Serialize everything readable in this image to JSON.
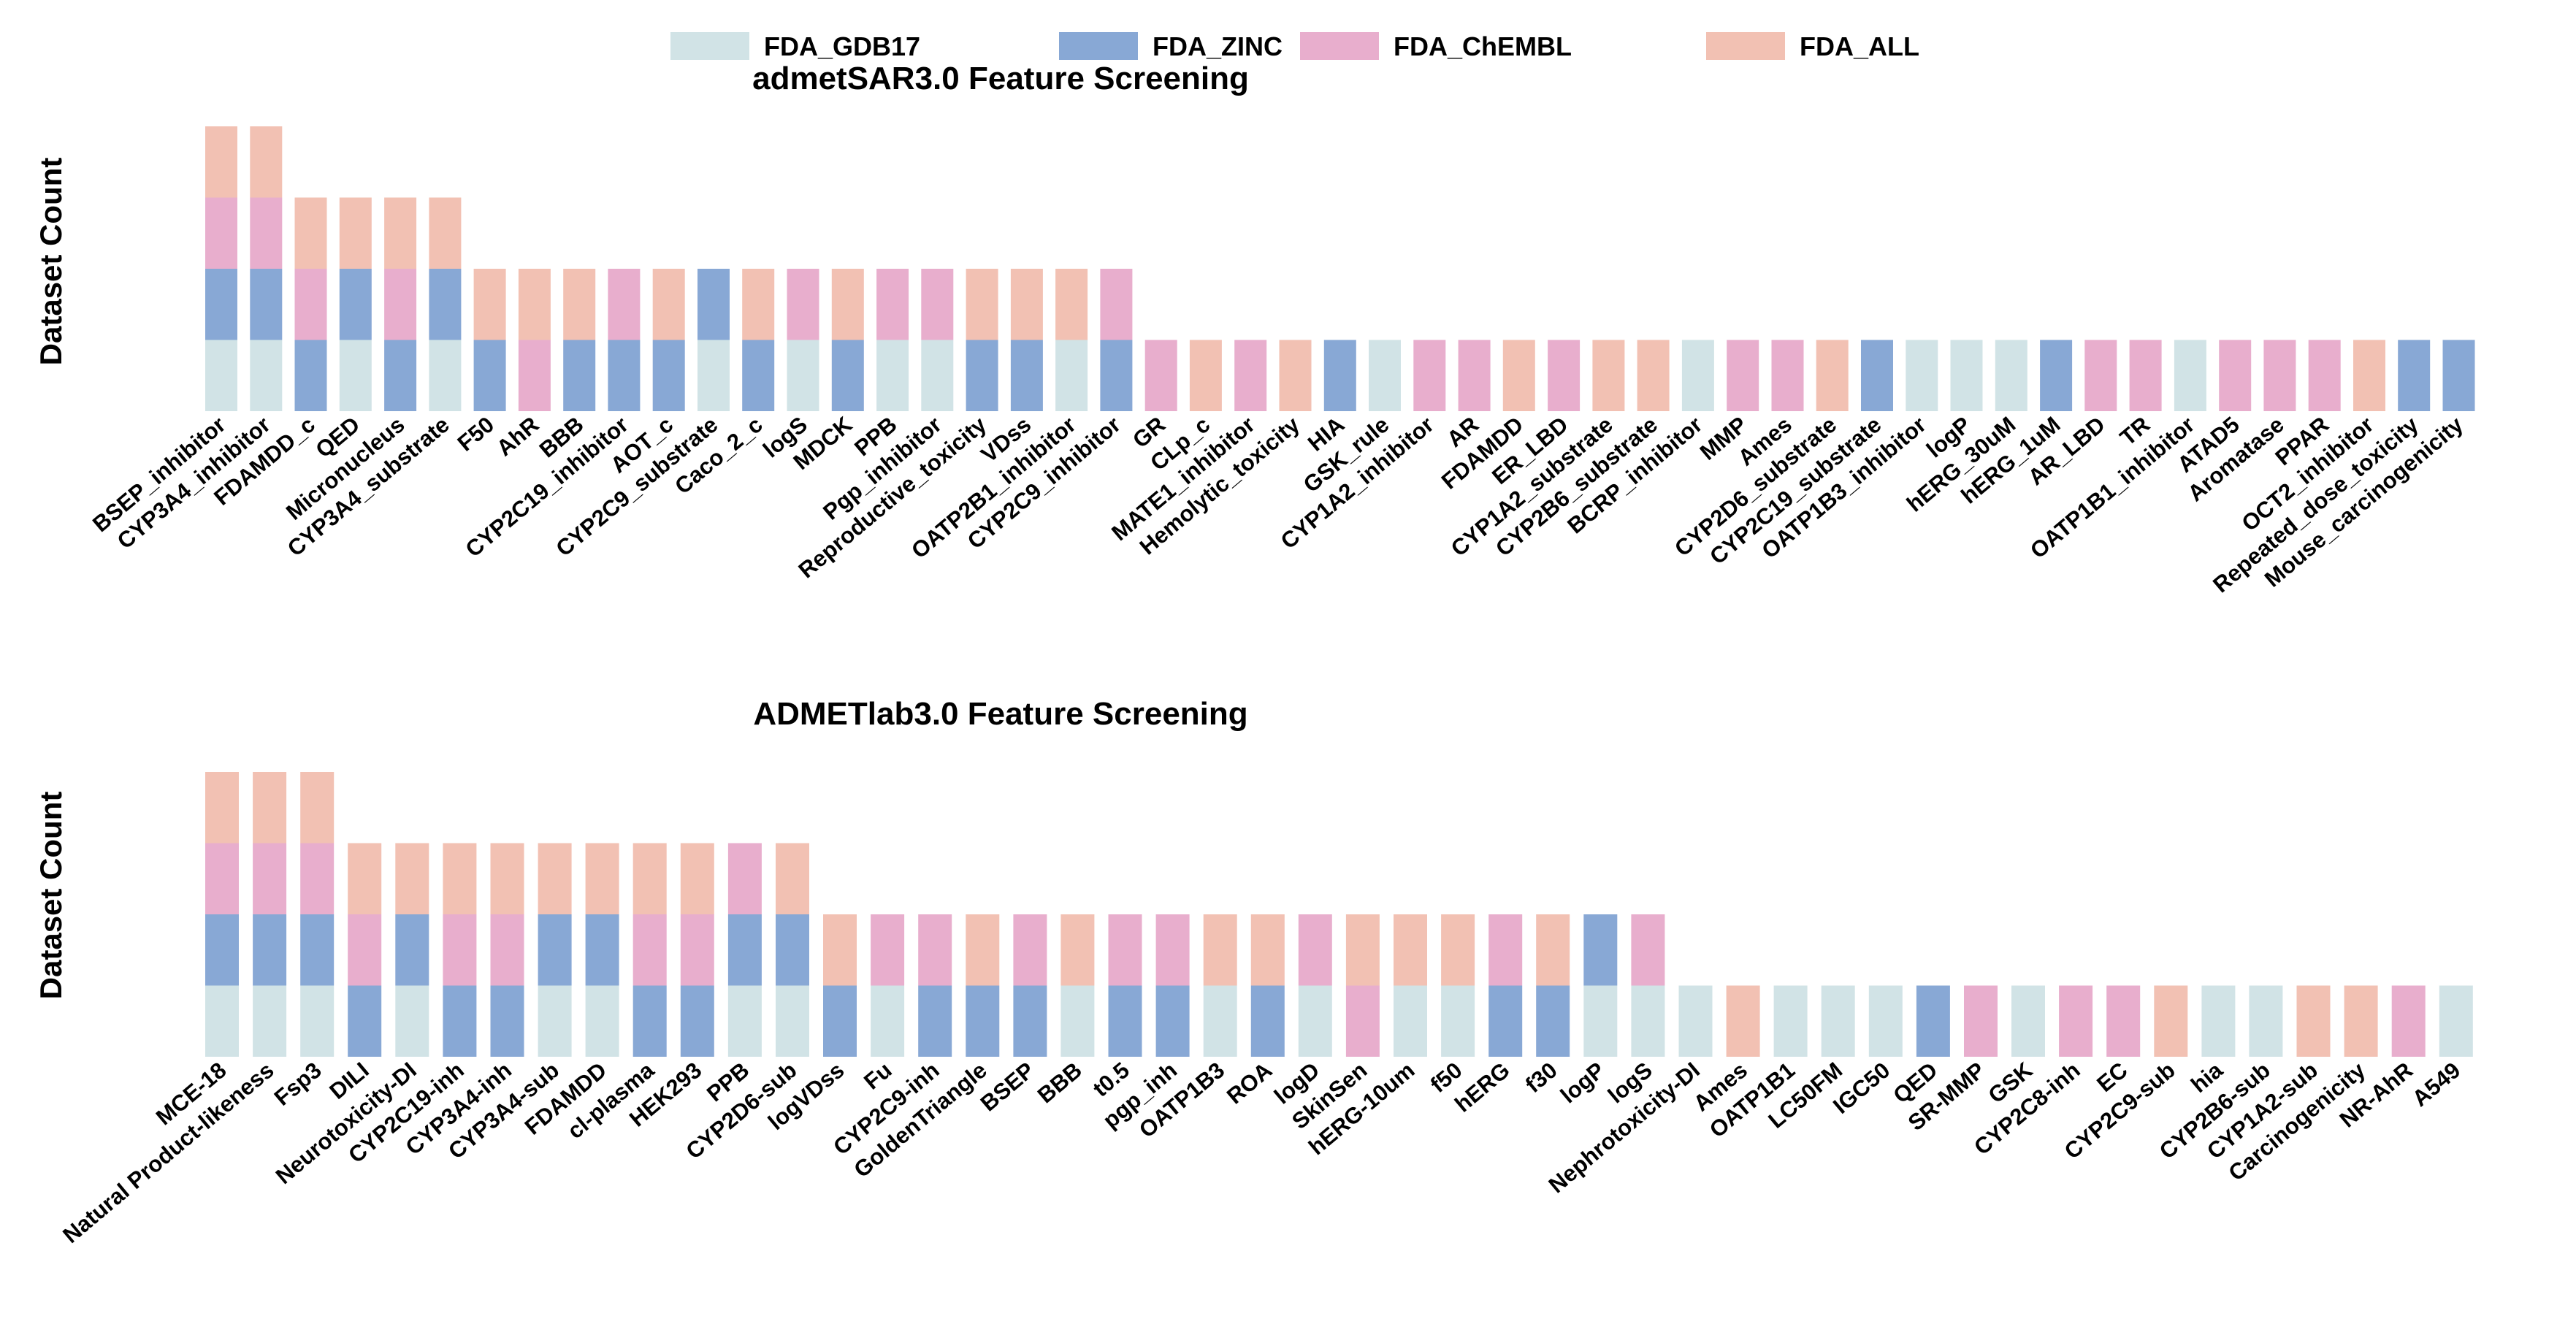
{
  "legend": [
    {
      "name": "FDA_GDB17",
      "color": "#d1e3e6"
    },
    {
      "name": "FDA_ZINC",
      "color": "#88a8d5"
    },
    {
      "name": "FDA_ChEMBL",
      "color": "#e8aecd"
    },
    {
      "name": "FDA_ALL",
      "color": "#f2c1b3"
    }
  ],
  "chart_data": [
    {
      "type": "bar",
      "stacked": true,
      "title": "admetSAR3.0 Feature Screening",
      "ylabel": "Dataset Count",
      "ylim": [
        0,
        4
      ],
      "grid": false,
      "legend_position": "top-center",
      "categories": [
        "BSEP_inhibitor",
        "CYP3A4_inhibitor",
        "FDAMDD_c",
        "QED",
        "Micronucleus",
        "CYP3A4_substrate",
        "F50",
        "AhR",
        "BBB",
        "CYP2C19_inhibitor",
        "AOT_c",
        "CYP2C9_substrate",
        "Caco_2_c",
        "logS",
        "MDCK",
        "PPB",
        "Pgp_inhibitor",
        "Reproductive_toxicity",
        "VDss",
        "OATP2B1_inhibitor",
        "CYP2C9_inhibitor",
        "GR",
        "CLp_c",
        "MATE1_inhibitor",
        "Hemolytic_toxicity",
        "HIA",
        "GSK_rule",
        "CYP1A2_inhibitor",
        "AR",
        "FDAMDD",
        "ER_LBD",
        "CYP1A2_substrate",
        "CYP2B6_substrate",
        "BCRP_inhibitor",
        "MMP",
        "Ames",
        "CYP2D6_substrate",
        "CYP2C19_substrate",
        "OATP1B3_inhibitor",
        "logP",
        "hERG_30uM",
        "hERG_1uM",
        "AR_LBD",
        "TR",
        "OATP1B1_inhibitor",
        "ATAD5",
        "Aromatase",
        "PPAR",
        "OCT2_inhibitor",
        "Repeated_dose_toxicity",
        "Mouse_carcinogenicity"
      ],
      "stacks": [
        [
          "FDA_GDB17",
          "FDA_ZINC",
          "FDA_ChEMBL",
          "FDA_ALL"
        ],
        [
          "FDA_GDB17",
          "FDA_ZINC",
          "FDA_ChEMBL",
          "FDA_ALL"
        ],
        [
          "FDA_ZINC",
          "FDA_ChEMBL",
          "FDA_ALL"
        ],
        [
          "FDA_GDB17",
          "FDA_ZINC",
          "FDA_ALL"
        ],
        [
          "FDA_ZINC",
          "FDA_ChEMBL",
          "FDA_ALL"
        ],
        [
          "FDA_GDB17",
          "FDA_ZINC",
          "FDA_ALL"
        ],
        [
          "FDA_ZINC",
          "FDA_ALL"
        ],
        [
          "FDA_ChEMBL",
          "FDA_ALL"
        ],
        [
          "FDA_ZINC",
          "FDA_ALL"
        ],
        [
          "FDA_ZINC",
          "FDA_ChEMBL"
        ],
        [
          "FDA_ZINC",
          "FDA_ALL"
        ],
        [
          "FDA_GDB17",
          "FDA_ZINC"
        ],
        [
          "FDA_ZINC",
          "FDA_ALL"
        ],
        [
          "FDA_GDB17",
          "FDA_ChEMBL"
        ],
        [
          "FDA_ZINC",
          "FDA_ALL"
        ],
        [
          "FDA_GDB17",
          "FDA_ChEMBL"
        ],
        [
          "FDA_GDB17",
          "FDA_ChEMBL"
        ],
        [
          "FDA_ZINC",
          "FDA_ALL"
        ],
        [
          "FDA_ZINC",
          "FDA_ALL"
        ],
        [
          "FDA_GDB17",
          "FDA_ALL"
        ],
        [
          "FDA_ZINC",
          "FDA_ChEMBL"
        ],
        [
          "FDA_ChEMBL"
        ],
        [
          "FDA_ALL"
        ],
        [
          "FDA_ChEMBL"
        ],
        [
          "FDA_ALL"
        ],
        [
          "FDA_ZINC"
        ],
        [
          "FDA_GDB17"
        ],
        [
          "FDA_ChEMBL"
        ],
        [
          "FDA_ChEMBL"
        ],
        [
          "FDA_ALL"
        ],
        [
          "FDA_ChEMBL"
        ],
        [
          "FDA_ALL"
        ],
        [
          "FDA_ALL"
        ],
        [
          "FDA_GDB17"
        ],
        [
          "FDA_ChEMBL"
        ],
        [
          "FDA_ChEMBL"
        ],
        [
          "FDA_ALL"
        ],
        [
          "FDA_ZINC"
        ],
        [
          "FDA_GDB17"
        ],
        [
          "FDA_GDB17"
        ],
        [
          "FDA_GDB17"
        ],
        [
          "FDA_ZINC"
        ],
        [
          "FDA_ChEMBL"
        ],
        [
          "FDA_ChEMBL"
        ],
        [
          "FDA_GDB17"
        ],
        [
          "FDA_ChEMBL"
        ],
        [
          "FDA_ChEMBL"
        ],
        [
          "FDA_ChEMBL"
        ],
        [
          "FDA_ALL"
        ],
        [
          "FDA_ZINC"
        ],
        [
          "FDA_ZINC"
        ]
      ]
    },
    {
      "type": "bar",
      "stacked": true,
      "title": "ADMETlab3.0 Feature Screening",
      "ylabel": "Dataset Count",
      "ylim": [
        0,
        4
      ],
      "grid": false,
      "categories": [
        "MCE-18",
        "Natural Product-likeness",
        "Fsp3",
        "DILI",
        "Neurotoxicity-DI",
        "CYP2C19-inh",
        "CYP3A4-inh",
        "CYP3A4-sub",
        "FDAMDD",
        "cl-plasma",
        "HEK293",
        "PPB",
        "CYP2D6-sub",
        "logVDss",
        "Fu",
        "CYP2C9-inh",
        "GoldenTriangle",
        "BSEP",
        "BBB",
        "t0.5",
        "pgp_inh",
        "OATP1B3",
        "ROA",
        "logD",
        "SkinSen",
        "hERG-10um",
        "f50",
        "hERG",
        "f30",
        "logP",
        "logS",
        "Nephrotoxicity-DI",
        "Ames",
        "OATP1B1",
        "LC50FM",
        "IGC50",
        "QED",
        "SR-MMP",
        "GSK",
        "CYP2C8-inh",
        "EC",
        "CYP2C9-sub",
        "hia",
        "CYP2B6-sub",
        "CYP1A2-sub",
        "Carcinogenicity",
        "NR-AhR",
        "A549"
      ],
      "stacks": [
        [
          "FDA_GDB17",
          "FDA_ZINC",
          "FDA_ChEMBL",
          "FDA_ALL"
        ],
        [
          "FDA_GDB17",
          "FDA_ZINC",
          "FDA_ChEMBL",
          "FDA_ALL"
        ],
        [
          "FDA_GDB17",
          "FDA_ZINC",
          "FDA_ChEMBL",
          "FDA_ALL"
        ],
        [
          "FDA_ZINC",
          "FDA_ChEMBL",
          "FDA_ALL"
        ],
        [
          "FDA_GDB17",
          "FDA_ZINC",
          "FDA_ALL"
        ],
        [
          "FDA_ZINC",
          "FDA_ChEMBL",
          "FDA_ALL"
        ],
        [
          "FDA_ZINC",
          "FDA_ChEMBL",
          "FDA_ALL"
        ],
        [
          "FDA_GDB17",
          "FDA_ZINC",
          "FDA_ALL"
        ],
        [
          "FDA_GDB17",
          "FDA_ZINC",
          "FDA_ALL"
        ],
        [
          "FDA_ZINC",
          "FDA_ChEMBL",
          "FDA_ALL"
        ],
        [
          "FDA_ZINC",
          "FDA_ChEMBL",
          "FDA_ALL"
        ],
        [
          "FDA_GDB17",
          "FDA_ZINC",
          "FDA_ChEMBL"
        ],
        [
          "FDA_GDB17",
          "FDA_ZINC",
          "FDA_ALL"
        ],
        [
          "FDA_ZINC",
          "FDA_ALL"
        ],
        [
          "FDA_GDB17",
          "FDA_ChEMBL"
        ],
        [
          "FDA_ZINC",
          "FDA_ChEMBL"
        ],
        [
          "FDA_ZINC",
          "FDA_ALL"
        ],
        [
          "FDA_ZINC",
          "FDA_ChEMBL"
        ],
        [
          "FDA_GDB17",
          "FDA_ALL"
        ],
        [
          "FDA_ZINC",
          "FDA_ChEMBL"
        ],
        [
          "FDA_ZINC",
          "FDA_ChEMBL"
        ],
        [
          "FDA_GDB17",
          "FDA_ALL"
        ],
        [
          "FDA_ZINC",
          "FDA_ALL"
        ],
        [
          "FDA_GDB17",
          "FDA_ChEMBL"
        ],
        [
          "FDA_ChEMBL",
          "FDA_ALL"
        ],
        [
          "FDA_GDB17",
          "FDA_ALL"
        ],
        [
          "FDA_GDB17",
          "FDA_ALL"
        ],
        [
          "FDA_ZINC",
          "FDA_ChEMBL"
        ],
        [
          "FDA_ZINC",
          "FDA_ALL"
        ],
        [
          "FDA_GDB17",
          "FDA_ZINC"
        ],
        [
          "FDA_GDB17",
          "FDA_ChEMBL"
        ],
        [
          "FDA_GDB17"
        ],
        [
          "FDA_ALL"
        ],
        [
          "FDA_GDB17"
        ],
        [
          "FDA_GDB17"
        ],
        [
          "FDA_GDB17"
        ],
        [
          "FDA_ZINC"
        ],
        [
          "FDA_ChEMBL"
        ],
        [
          "FDA_GDB17"
        ],
        [
          "FDA_ChEMBL"
        ],
        [
          "FDA_ChEMBL"
        ],
        [
          "FDA_ALL"
        ],
        [
          "FDA_GDB17"
        ],
        [
          "FDA_GDB17"
        ],
        [
          "FDA_ALL"
        ],
        [
          "FDA_ALL"
        ],
        [
          "FDA_ChEMBL"
        ],
        [
          "FDA_GDB17"
        ]
      ]
    }
  ]
}
